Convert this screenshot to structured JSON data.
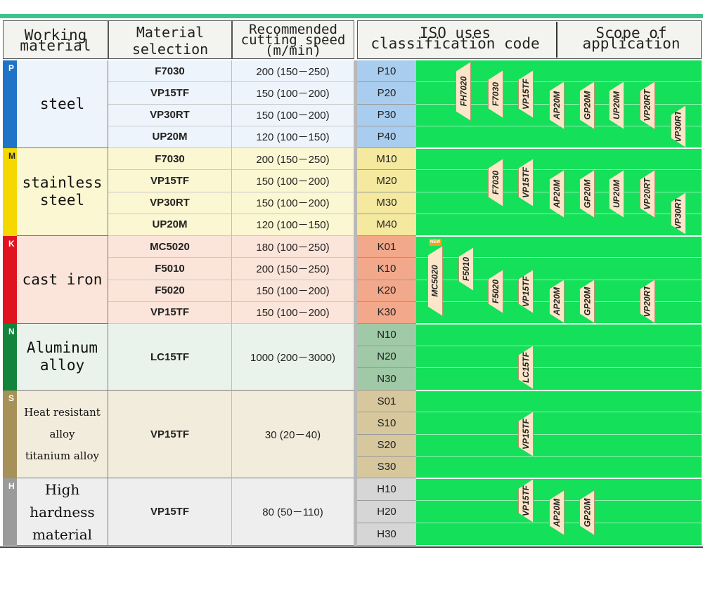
{
  "headers": {
    "working_material": [
      "Working",
      "material"
    ],
    "material_selection": [
      "Material",
      "selection"
    ],
    "cutting_speed": [
      "Recommended",
      "cutting speed",
      "(m/min)"
    ],
    "iso": [
      "ISO uses",
      "classification code"
    ],
    "scope": [
      "Scope of",
      "application"
    ]
  },
  "colors": {
    "P": "#1f74c7",
    "M": "#f4d800",
    "K": "#e0141f",
    "N": "#13843b",
    "S": "#a69158",
    "H": "#9b9b9b",
    "scope_green": "#14e05a"
  },
  "groups": [
    {
      "code": "P",
      "material": [
        "steel"
      ],
      "rows": [
        {
          "grade": "F7030",
          "speed": "200 (150－250)",
          "iso": "P10"
        },
        {
          "grade": "VP15TF",
          "speed": "150 (100－200)",
          "iso": "P20"
        },
        {
          "grade": "VP30RT",
          "speed": "150 (100－200)",
          "iso": "P30"
        },
        {
          "grade": "UP20M",
          "speed": "120 (100－150)",
          "iso": "P40"
        }
      ]
    },
    {
      "code": "M",
      "material": [
        "stainless",
        "steel"
      ],
      "rows": [
        {
          "grade": "F7030",
          "speed": "200 (150－250)",
          "iso": "M10"
        },
        {
          "grade": "VP15TF",
          "speed": "150 (100－200)",
          "iso": "M20"
        },
        {
          "grade": "VP30RT",
          "speed": "150 (100－200)",
          "iso": "M30"
        },
        {
          "grade": "UP20M",
          "speed": "120 (100－150)",
          "iso": "M40"
        }
      ]
    },
    {
      "code": "K",
      "material": [
        "cast iron"
      ],
      "rows": [
        {
          "grade": "MC5020",
          "speed": "180 (100－250)",
          "iso": "K01"
        },
        {
          "grade": "F5010",
          "speed": "200 (150－250)",
          "iso": "K10"
        },
        {
          "grade": "F5020",
          "speed": "150 (100－200)",
          "iso": "K20"
        },
        {
          "grade": "VP15TF",
          "speed": "150 (100－200)",
          "iso": "K30"
        }
      ]
    },
    {
      "code": "N",
      "material": [
        "Aluminum",
        "alloy"
      ],
      "grade": "LC15TF",
      "speed": "1000 (200－3000)",
      "iso": [
        "N10",
        "N20",
        "N30"
      ]
    },
    {
      "code": "S",
      "material": [
        "Heat resistant",
        "alloy",
        "titanium alloy"
      ],
      "grade": "VP15TF",
      "speed": "30 (20－40)",
      "iso": [
        "S01",
        "S10",
        "S20",
        "S30"
      ]
    },
    {
      "code": "H",
      "material": [
        "High",
        "hardness",
        "material"
      ],
      "grade": "VP15TF",
      "speed": "80 (50－110)",
      "iso": [
        "H10",
        "H20",
        "H30"
      ]
    }
  ],
  "scope_tags": {
    "new_badge": "NEW",
    "P": [
      "FH7020",
      "F7030",
      "VP15TF",
      "AP20M",
      "GP20M",
      "UP20M",
      "VP20RT",
      "VP30RT"
    ],
    "M": [
      "F7030",
      "VP15TF",
      "AP20M",
      "GP20M",
      "UP20M",
      "VP20RT",
      "VP30RT"
    ],
    "K": [
      "MC5020",
      "F5010",
      "F5020",
      "VP15TF",
      "AP20M",
      "GP20M",
      "VP20RT"
    ],
    "N": [
      "LC15TF"
    ],
    "S": [
      "VP15TF"
    ],
    "H": [
      "VP15TF",
      "AP20M",
      "GP20M"
    ]
  }
}
